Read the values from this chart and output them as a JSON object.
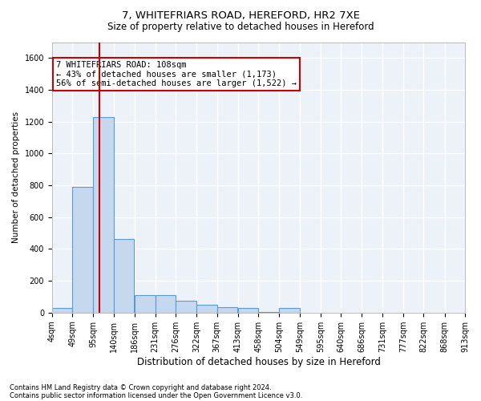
{
  "title_line1": "7, WHITEFRIARS ROAD, HEREFORD, HR2 7XE",
  "title_line2": "Size of property relative to detached houses in Hereford",
  "xlabel": "Distribution of detached houses by size in Hereford",
  "ylabel": "Number of detached properties",
  "footer_line1": "Contains HM Land Registry data © Crown copyright and database right 2024.",
  "footer_line2": "Contains public sector information licensed under the Open Government Licence v3.0.",
  "property_size": 108,
  "annotation_text": "7 WHITEFRIARS ROAD: 108sqm\n← 43% of detached houses are smaller (1,173)\n56% of semi-detached houses are larger (1,522) →",
  "bin_edges": [
    4,
    49,
    95,
    140,
    186,
    231,
    276,
    322,
    367,
    413,
    458,
    504,
    549,
    595,
    640,
    686,
    731,
    777,
    822,
    868,
    913
  ],
  "bin_labels": [
    "4sqm",
    "49sqm",
    "95sqm",
    "140sqm",
    "186sqm",
    "231sqm",
    "276sqm",
    "322sqm",
    "367sqm",
    "413sqm",
    "458sqm",
    "504sqm",
    "549sqm",
    "595sqm",
    "640sqm",
    "686sqm",
    "731sqm",
    "777sqm",
    "822sqm",
    "868sqm",
    "913sqm"
  ],
  "bar_heights": [
    30,
    790,
    1230,
    460,
    110,
    110,
    75,
    50,
    35,
    30,
    5,
    30,
    0,
    0,
    0,
    0,
    0,
    0,
    0,
    0
  ],
  "bar_color": "#c5d8ee",
  "bar_edge_color": "#5b9bd5",
  "vline_color": "#cc0000",
  "vline_x": 108,
  "ylim": [
    0,
    1700
  ],
  "yticks": [
    0,
    200,
    400,
    600,
    800,
    1000,
    1200,
    1400,
    1600
  ],
  "fig_background": "#ffffff",
  "ax_background": "#edf2f9",
  "grid_color": "#ffffff",
  "annotation_box_facecolor": "#ffffff",
  "annotation_box_edgecolor": "#cc0000",
  "title1_fontsize": 9.5,
  "title2_fontsize": 8.5,
  "ylabel_fontsize": 7.5,
  "xlabel_fontsize": 8.5,
  "tick_fontsize": 7,
  "annotation_fontsize": 7.5,
  "footer_fontsize": 6
}
